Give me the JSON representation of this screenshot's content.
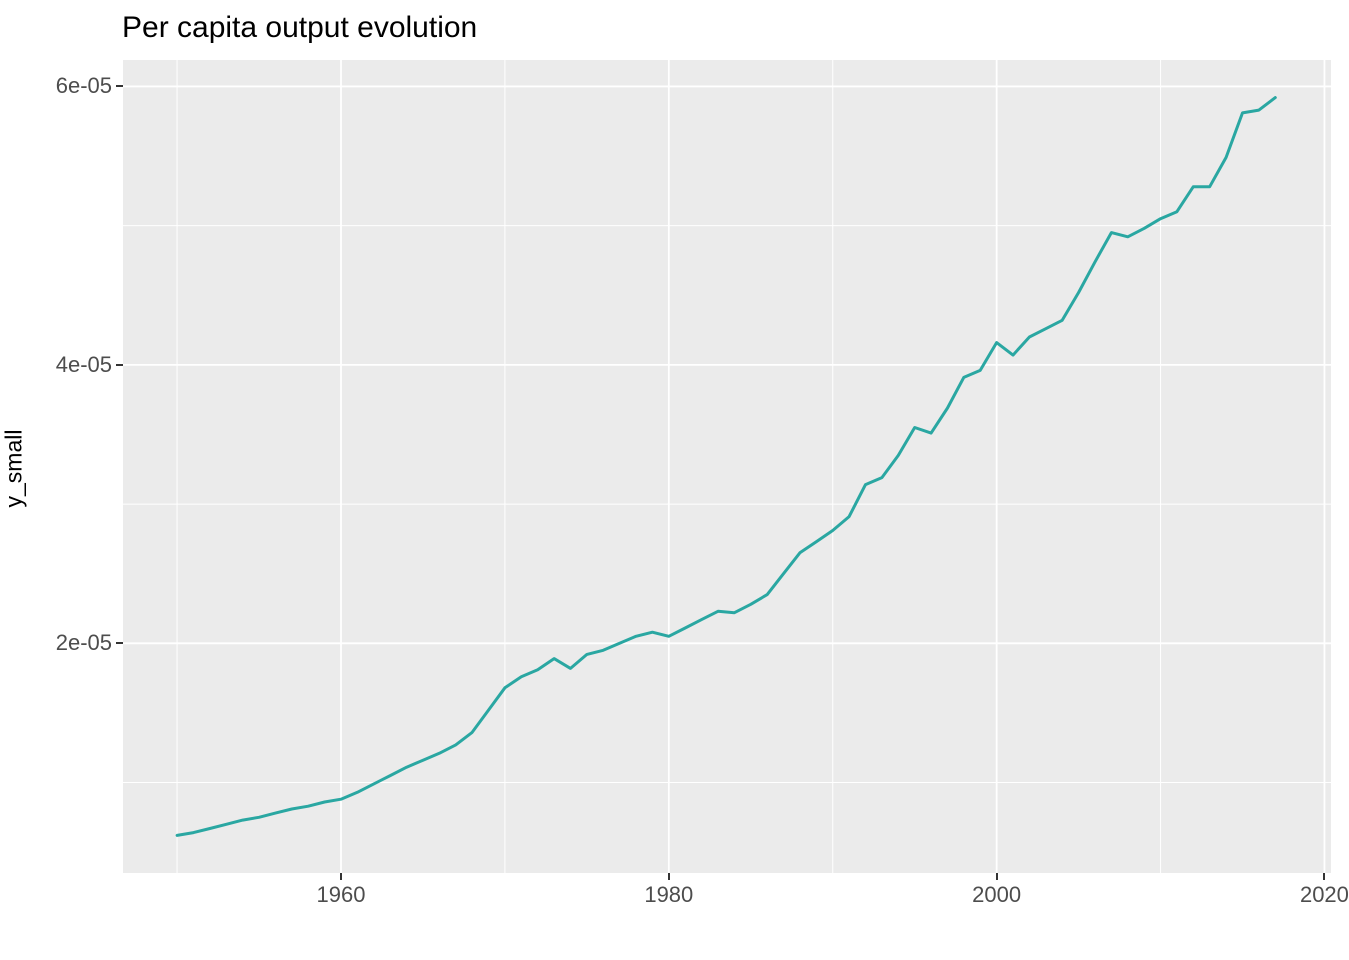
{
  "title": "Per capita output evolution",
  "chart_data": {
    "type": "line",
    "title": "Per capita output evolution",
    "xlabel": "",
    "ylabel": "y_small",
    "legend": "none",
    "grid": "on",
    "panel_bg": "#ebebeb",
    "grid_color": "#ffffff",
    "axis_text_color": "#4d4d4d",
    "line_color": "#2aa7a2",
    "tick_color": "#333333",
    "xlim": [
      1946.7,
      2020.4
    ],
    "ylim": [
      3.5e-06,
      6.19e-05
    ],
    "x_major_ticks": [
      1960,
      1980,
      2000,
      2020
    ],
    "x_tick_labels": [
      "1960",
      "1980",
      "2000",
      "2020"
    ],
    "x_minor_gridlines": [
      1950,
      1970,
      1990,
      2010
    ],
    "y_major_ticks": [
      2e-05,
      4e-05,
      6e-05
    ],
    "y_tick_labels": [
      "2e-05",
      "4e-05",
      "6e-05"
    ],
    "y_minor_gridlines": [
      1e-05,
      3e-05,
      5e-05
    ],
    "series": [
      {
        "name": "y_small",
        "x": [
          1950,
          1951,
          1952,
          1953,
          1954,
          1955,
          1956,
          1957,
          1958,
          1959,
          1960,
          1961,
          1962,
          1963,
          1964,
          1965,
          1966,
          1967,
          1968,
          1969,
          1970,
          1971,
          1972,
          1973,
          1974,
          1975,
          1976,
          1977,
          1978,
          1979,
          1980,
          1981,
          1982,
          1983,
          1984,
          1985,
          1986,
          1987,
          1988,
          1989,
          1990,
          1991,
          1992,
          1993,
          1994,
          1995,
          1996,
          1997,
          1998,
          1999,
          2000,
          2001,
          2002,
          2003,
          2004,
          2005,
          2006,
          2007,
          2008,
          2009,
          2010,
          2011,
          2012,
          2013,
          2014,
          2015,
          2016,
          2017
        ],
        "values": [
          6.2e-06,
          6.4e-06,
          6.7e-06,
          7e-06,
          7.3e-06,
          7.5e-06,
          7.8e-06,
          8.1e-06,
          8.3e-06,
          8.6e-06,
          8.8e-06,
          9.3e-06,
          9.9e-06,
          1.05e-05,
          1.11e-05,
          1.16e-05,
          1.21e-05,
          1.27e-05,
          1.36e-05,
          1.52e-05,
          1.68e-05,
          1.76e-05,
          1.81e-05,
          1.89e-05,
          1.82e-05,
          1.92e-05,
          1.95e-05,
          2e-05,
          2.05e-05,
          2.08e-05,
          2.05e-05,
          2.11e-05,
          2.17e-05,
          2.23e-05,
          2.22e-05,
          2.28e-05,
          2.35e-05,
          2.5e-05,
          2.65e-05,
          2.73e-05,
          2.81e-05,
          2.91e-05,
          3.14e-05,
          3.19e-05,
          3.35e-05,
          3.55e-05,
          3.51e-05,
          3.69e-05,
          3.91e-05,
          3.96e-05,
          4.16e-05,
          4.07e-05,
          4.2e-05,
          4.26e-05,
          4.32e-05,
          4.52e-05,
          4.74e-05,
          4.95e-05,
          4.92e-05,
          4.98e-05,
          5.05e-05,
          5.1e-05,
          5.28e-05,
          5.28e-05,
          5.49e-05,
          5.81e-05,
          5.83e-05,
          5.92e-05
        ]
      }
    ]
  }
}
